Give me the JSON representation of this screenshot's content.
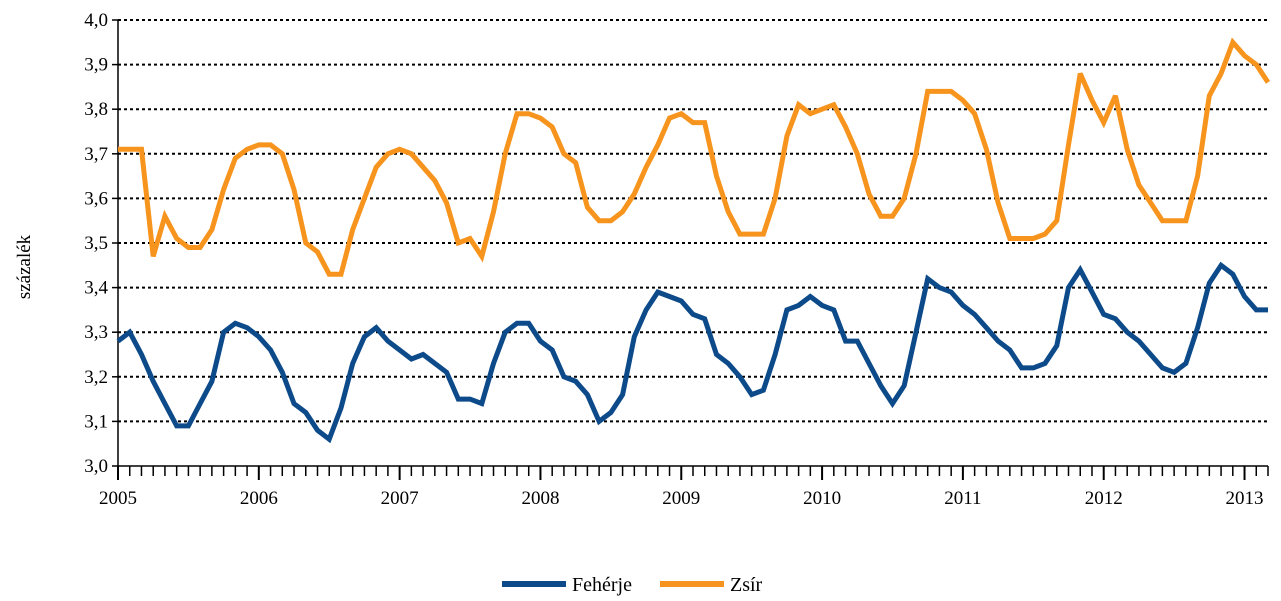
{
  "chart_data": {
    "type": "line",
    "title": "",
    "xlabel": "",
    "ylabel": "százalék",
    "ylim": [
      3.0,
      4.0
    ],
    "yticks": [
      "3,0",
      "3,1",
      "3,2",
      "3,3",
      "3,4",
      "3,5",
      "3,6",
      "3,7",
      "3,8",
      "3,9",
      "4,0"
    ],
    "year_labels": [
      "2005",
      "2006",
      "2007",
      "2008",
      "2009",
      "2010",
      "2011",
      "2012",
      "2013"
    ],
    "x_start": "2005-01",
    "x_end": "2013-03",
    "grid": "horizontal dotted",
    "legend_position": "bottom",
    "series": [
      {
        "name": "Fehérje",
        "color": "#0d4a8a",
        "values": [
          3.28,
          3.3,
          3.25,
          3.19,
          3.14,
          3.09,
          3.09,
          3.14,
          3.19,
          3.3,
          3.32,
          3.31,
          3.29,
          3.26,
          3.21,
          3.14,
          3.12,
          3.08,
          3.06,
          3.13,
          3.23,
          3.29,
          3.31,
          3.28,
          3.26,
          3.24,
          3.25,
          3.23,
          3.21,
          3.15,
          3.15,
          3.14,
          3.23,
          3.3,
          3.32,
          3.32,
          3.28,
          3.26,
          3.2,
          3.19,
          3.16,
          3.1,
          3.12,
          3.16,
          3.29,
          3.35,
          3.39,
          3.38,
          3.37,
          3.34,
          3.33,
          3.25,
          3.23,
          3.2,
          3.16,
          3.17,
          3.25,
          3.35,
          3.36,
          3.38,
          3.36,
          3.35,
          3.28,
          3.28,
          3.23,
          3.18,
          3.14,
          3.18,
          3.3,
          3.42,
          3.4,
          3.39,
          3.36,
          3.34,
          3.31,
          3.28,
          3.26,
          3.22,
          3.22,
          3.23,
          3.27,
          3.4,
          3.44,
          3.39,
          3.34,
          3.33,
          3.3,
          3.28,
          3.25,
          3.22,
          3.21,
          3.23,
          3.31,
          3.41,
          3.45,
          3.43,
          3.38,
          3.35,
          3.35
        ]
      },
      {
        "name": "Zsír",
        "color": "#f7941d",
        "values": [
          3.71,
          3.71,
          3.71,
          3.47,
          3.56,
          3.51,
          3.49,
          3.49,
          3.53,
          3.62,
          3.69,
          3.71,
          3.72,
          3.72,
          3.7,
          3.62,
          3.5,
          3.48,
          3.43,
          3.43,
          3.53,
          3.6,
          3.67,
          3.7,
          3.71,
          3.7,
          3.67,
          3.64,
          3.59,
          3.5,
          3.51,
          3.47,
          3.57,
          3.7,
          3.79,
          3.79,
          3.78,
          3.76,
          3.7,
          3.68,
          3.58,
          3.55,
          3.55,
          3.57,
          3.61,
          3.67,
          3.72,
          3.78,
          3.79,
          3.77,
          3.77,
          3.65,
          3.57,
          3.52,
          3.52,
          3.52,
          3.6,
          3.74,
          3.81,
          3.79,
          3.8,
          3.81,
          3.76,
          3.7,
          3.61,
          3.56,
          3.56,
          3.6,
          3.7,
          3.84,
          3.84,
          3.84,
          3.82,
          3.79,
          3.71,
          3.59,
          3.51,
          3.51,
          3.51,
          3.52,
          3.55,
          3.72,
          3.88,
          3.82,
          3.77,
          3.83,
          3.71,
          3.63,
          3.59,
          3.55,
          3.55,
          3.55,
          3.65,
          3.83,
          3.88,
          3.95,
          3.92,
          3.9,
          3.86
        ]
      }
    ]
  }
}
